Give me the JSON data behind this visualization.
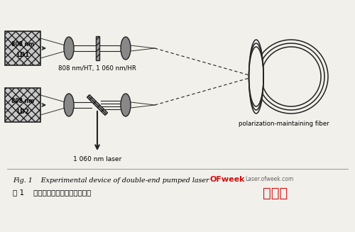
{
  "bg_color": "#f2f0eb",
  "title_en": "Fig. 1    Experimental device of double-end pumped laser",
  "title_cn": "图 1    双端泵浦光纤激光器实验装置",
  "label_top_mirror": "808 nm/HT, 1 060 nm/HR",
  "label_bottom_output": "1 060 nm laser",
  "label_fiber": "polarization-maintaining fiber",
  "ld1_text_line1": "808 nm",
  "ld1_text_line2": "LD1",
  "ld2_text_line1": "808 nm",
  "ld2_text_line2": "LD2",
  "watermark_ofweek": "OFweek",
  "watermark_laser": "Laser.ofweek.com",
  "watermark_cn": "激光网",
  "watermark_color": "#cc1111",
  "watermark_gray": "#666666"
}
